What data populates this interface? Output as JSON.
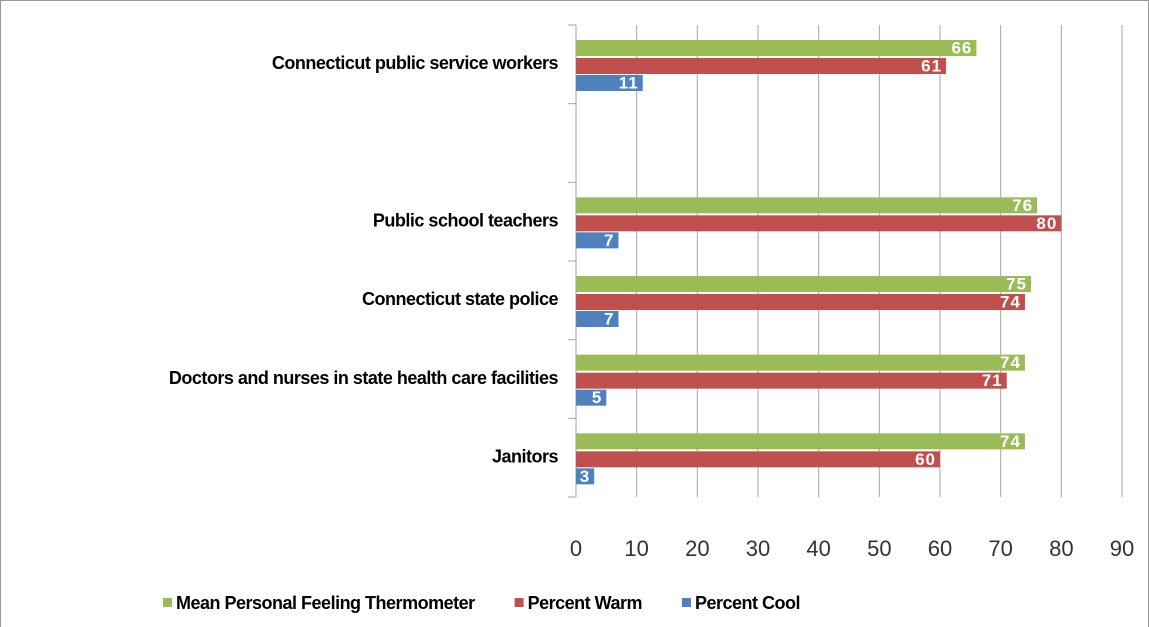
{
  "chart_data": {
    "type": "bar",
    "orientation": "horizontal",
    "categories": [
      "Connecticut public service workers",
      null,
      "Public school teachers",
      "Connecticut state police",
      "Doctors and nurses in state health care facilities",
      "Janitors"
    ],
    "series": [
      {
        "name": "Mean Personal Feeling Thermometer",
        "color": "#9bbb59",
        "values": [
          66,
          null,
          76,
          75,
          74,
          74
        ]
      },
      {
        "name": "Percent Warm",
        "color": "#c0504d",
        "values": [
          61,
          null,
          80,
          74,
          71,
          60
        ]
      },
      {
        "name": "Percent Cool",
        "color": "#4f81bd",
        "values": [
          11,
          null,
          7,
          7,
          5,
          3
        ]
      }
    ],
    "xlim": [
      0,
      90
    ],
    "xticks": [
      0,
      10,
      20,
      30,
      40,
      50,
      60,
      70,
      80,
      90
    ],
    "grid": true,
    "legend": "bottom"
  }
}
